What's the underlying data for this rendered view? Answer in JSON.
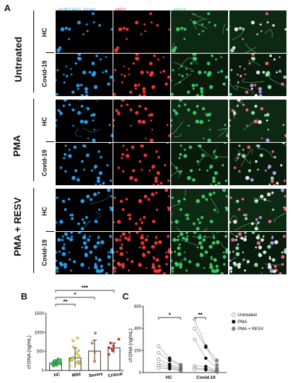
{
  "figure": {
    "panel_a": "A",
    "panel_b": "B",
    "panel_c": "C",
    "channels": [
      {
        "label": "HOECHST 33342",
        "color": "#29a9ff"
      },
      {
        "label": "MPO",
        "color": "#ff3a3a"
      },
      {
        "label": "H3Cit",
        "color": "#3fd66a"
      },
      {
        "label": "MERGE",
        "color": "#ffffff"
      }
    ],
    "groups": [
      {
        "label": "Untreated",
        "rows": [
          "HC",
          "Covid-19"
        ]
      },
      {
        "label": "PMA",
        "rows": [
          "HC",
          "Covid-19"
        ]
      },
      {
        "label": "PMA + RESV",
        "rows": [
          "HC",
          "Covid-19"
        ]
      }
    ]
  },
  "chart_data": [
    {
      "type": "bar",
      "panel": "B",
      "categories": [
        "HC",
        "Mild",
        "Severe",
        "Critical"
      ],
      "values": [
        195,
        330,
        510,
        590
      ],
      "errors": [
        70,
        260,
        290,
        130
      ],
      "points": [
        [
          120,
          150,
          170,
          190,
          200,
          210,
          215,
          230,
          250,
          260,
          280,
          300,
          170,
          140,
          230
        ],
        [
          120,
          180,
          210,
          240,
          260,
          300,
          340,
          390,
          450,
          520,
          620,
          780,
          850,
          280,
          200
        ],
        [
          240,
          480,
          720,
          980
        ],
        [
          420,
          520,
          560,
          600,
          650,
          720,
          820
        ]
      ],
      "colors": [
        "#2fbf4a",
        "#e8e030",
        "#f08c2a",
        "#d83a2a"
      ],
      "xlabel": "",
      "ylabel": "cf-DNA (ng/mL)",
      "ylim": [
        0,
        1500
      ],
      "yticks": [
        "0",
        "500",
        "1000",
        "1500"
      ],
      "significance": [
        "**",
        "*",
        "***"
      ]
    },
    {
      "type": "line",
      "panel": "C",
      "categories": [
        "HC",
        "Covid-19"
      ],
      "series": [
        {
          "name": "Untreated",
          "color": "#ffffff"
        },
        {
          "name": "PMA",
          "color": "#000000"
        },
        {
          "name": "PMA + RESV",
          "color": "#888888"
        }
      ],
      "hc_lines": [
        [
          240,
          130,
          70
        ],
        [
          180,
          110,
          60
        ],
        [
          120,
          75,
          40
        ],
        [
          80,
          60,
          30
        ],
        [
          60,
          45,
          20
        ],
        [
          40,
          35,
          15
        ]
      ],
      "covid_lines": [
        [
          480,
          240,
          110
        ],
        [
          400,
          230,
          70
        ],
        [
          300,
          130,
          40
        ],
        [
          60,
          55,
          20
        ],
        [
          40,
          35,
          10
        ],
        [
          30,
          25,
          5
        ]
      ],
      "ylabel": "cf-DNA (ng/mL)",
      "ylim": [
        0,
        600
      ],
      "yticks": [
        "0",
        "200",
        "400",
        "600"
      ],
      "significance": [
        "*",
        "**"
      ]
    }
  ]
}
